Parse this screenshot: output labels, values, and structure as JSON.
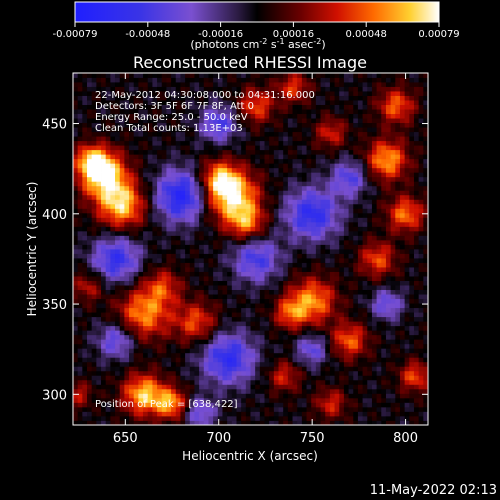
{
  "chart_data": {
    "type": "heatmap",
    "title": "Reconstructed RHESSI Image",
    "xlabel": "Heliocentric X (arcsec)",
    "ylabel": "Heliocentric Y (arcsec)",
    "xlim": [
      622,
      812
    ],
    "ylim": [
      283,
      478
    ],
    "xticks": [
      650,
      700,
      750,
      800
    ],
    "yticks": [
      300,
      350,
      400,
      450
    ],
    "colorbar": {
      "ticks": [
        "-0.00079",
        "-0.00048",
        "-0.00016",
        "0.00016",
        "0.00048",
        "0.00079"
      ],
      "unit_main": "(photons cm",
      "unit_sup1": "-2",
      "unit_mid": " s",
      "unit_sup2": "-1",
      "unit_end": " asec",
      "unit_sup3": "-2",
      "unit_close": ")",
      "vmin": -0.00079,
      "vmax": 0.00079
    },
    "annotations": [
      "22-May-2012 04:30:08.000 to 04:31:16.000",
      "Detectors: 3F 5F 6F 7F 8F, Att 0",
      "Energy Range: 25.0 - 50.0 keV",
      "Clean     Total counts: 1.13E+03"
    ],
    "peak_label": "Position of Peak = [638,422]",
    "peak": [
      638,
      422
    ],
    "grid": false
  },
  "timestamp": "11-May-2022 02:13"
}
